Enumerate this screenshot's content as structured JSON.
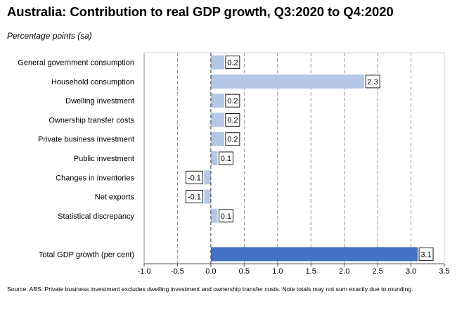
{
  "chart_data": {
    "type": "bar",
    "orientation": "horizontal",
    "title": "Australia:  Contribution  to real GDP growth, Q3:2020 to Q4:2020",
    "subtitle": "Percentage points (sa)",
    "categories": [
      "General government consumption",
      "Household consumption",
      "Dwelling investment",
      "Ownership transfer costs",
      "Private business investment",
      "Public investment",
      "Changes in inventories",
      "Net exports",
      "Statistical discrepancy",
      "",
      "Total GDP growth (per cent)"
    ],
    "values": [
      0.2,
      2.3,
      0.2,
      0.2,
      0.2,
      0.1,
      -0.1,
      -0.1,
      0.1,
      null,
      3.1
    ],
    "data_labels": [
      "0.2",
      "2.3",
      "0.2",
      "0.2",
      "0.2",
      "0.1",
      "-0.1",
      "-0.1",
      "0.1",
      "",
      "3.1"
    ],
    "bar_colors": [
      "#b4c7e7",
      "#b4c7e7",
      "#b4c7e7",
      "#b4c7e7",
      "#b4c7e7",
      "#b4c7e7",
      "#b4c7e7",
      "#b4c7e7",
      "#b4c7e7",
      "",
      "#4472c4"
    ],
    "xlim": [
      -1.0,
      3.5
    ],
    "xticks": [
      "-1.0",
      "-0.5",
      "0.0",
      "0.5",
      "1.0",
      "1.5",
      "2.0",
      "2.5",
      "3.0",
      "3.5"
    ],
    "grid": "vertical dashed",
    "source": "Source: ABS. Private business investment excludes dwelling investment and ownership transfer costs.  Note totals may not sum exactly due to rounding."
  }
}
